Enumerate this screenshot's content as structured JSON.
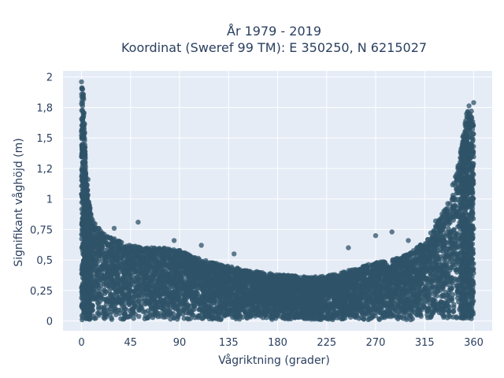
{
  "chart_data": {
    "type": "scatter",
    "title_line1": "År 1979 - 2019",
    "title_line2": "Koordinat (Sweref 99 TM): E 350250, N 6215027",
    "xlabel": "Vågriktning (grader)",
    "ylabel": "Signifikant våghöjd (m)",
    "xlim": [
      -17,
      377
    ],
    "ylim": [
      -0.08,
      2.05
    ],
    "xticks": [
      0,
      45,
      90,
      135,
      180,
      225,
      270,
      315,
      360
    ],
    "xtick_labels": [
      "0",
      "45",
      "90",
      "135",
      "180",
      "225",
      "270",
      "315",
      "360"
    ],
    "yticks": [
      0,
      0.25,
      0.5,
      0.75,
      1,
      1.25,
      1.5,
      1.75,
      2
    ],
    "ytick_labels": [
      "0",
      "0,25",
      "0,5",
      "0,75",
      "1",
      "1,2",
      "1,5",
      "1,8",
      "2"
    ],
    "grid": true,
    "background_color": "#e5ecf6",
    "marker_color": "#2f5368",
    "envelope": {
      "x": [
        0,
        2,
        4,
        8,
        12,
        20,
        30,
        45,
        60,
        75,
        90,
        105,
        120,
        135,
        150,
        165,
        180,
        195,
        210,
        225,
        240,
        255,
        270,
        285,
        300,
        315,
        325,
        335,
        345,
        350,
        355,
        360
      ],
      "y_max": [
        1.97,
        1.85,
        1.2,
        0.9,
        0.8,
        0.72,
        0.68,
        0.62,
        0.6,
        0.6,
        0.58,
        0.52,
        0.48,
        0.45,
        0.42,
        0.4,
        0.38,
        0.37,
        0.36,
        0.37,
        0.4,
        0.44,
        0.48,
        0.5,
        0.55,
        0.65,
        0.78,
        0.95,
        1.25,
        1.5,
        1.78,
        1.6
      ]
    },
    "outliers": [
      {
        "x": 0,
        "y": 1.96
      },
      {
        "x": 1,
        "y": 1.9
      },
      {
        "x": 0,
        "y": 1.78
      },
      {
        "x": 1,
        "y": 1.65
      },
      {
        "x": 0,
        "y": 1.55
      },
      {
        "x": 2,
        "y": 1.42
      },
      {
        "x": 1,
        "y": 1.3
      },
      {
        "x": 3,
        "y": 1.22
      },
      {
        "x": 0,
        "y": 1.04
      },
      {
        "x": 6,
        "y": 1.16
      },
      {
        "x": 52,
        "y": 0.81
      },
      {
        "x": 30,
        "y": 0.76
      },
      {
        "x": 85,
        "y": 0.66
      },
      {
        "x": 110,
        "y": 0.62
      },
      {
        "x": 140,
        "y": 0.55
      },
      {
        "x": 285,
        "y": 0.73
      },
      {
        "x": 270,
        "y": 0.7
      },
      {
        "x": 245,
        "y": 0.6
      },
      {
        "x": 300,
        "y": 0.66
      },
      {
        "x": 325,
        "y": 0.82
      },
      {
        "x": 335,
        "y": 0.88
      },
      {
        "x": 341,
        "y": 1.03
      },
      {
        "x": 347,
        "y": 1.22
      },
      {
        "x": 354,
        "y": 1.52
      },
      {
        "x": 358,
        "y": 1.72
      },
      {
        "x": 360,
        "y": 1.79
      }
    ]
  }
}
